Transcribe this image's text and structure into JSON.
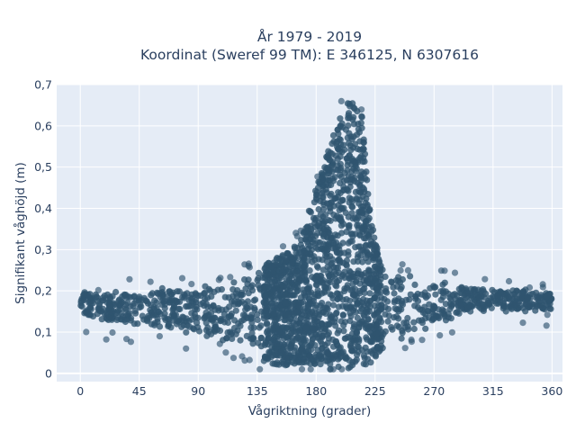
{
  "chart_data": {
    "type": "scatter",
    "title": [
      "År 1979 - 2019",
      "Koordinat (Sweref 99 TM): E 346125, N 6307616"
    ],
    "xlabel": "Vågriktning (grader)",
    "ylabel": "Signifikant våghöjd (m)",
    "xlim": [
      -18,
      368
    ],
    "ylim": [
      -0.02,
      0.7
    ],
    "xticks": [
      0,
      45,
      90,
      135,
      180,
      225,
      270,
      315,
      360
    ],
    "xtick_labels": [
      "0",
      "45",
      "90",
      "135",
      "180",
      "225",
      "270",
      "315",
      "360"
    ],
    "yticks": [
      0,
      0.1,
      0.2,
      0.3,
      0.4,
      0.5,
      0.6,
      0.7
    ],
    "ytick_labels": [
      "0",
      "0,1",
      "0,2",
      "0,3",
      "0,4",
      "0,5",
      "0,6",
      "0,7"
    ],
    "grid": true,
    "marker_color": "#2f5570",
    "background_color": "#e5ecf6",
    "envelope": {
      "x": [
        0,
        10,
        20,
        30,
        45,
        60,
        75,
        90,
        100,
        110,
        120,
        130,
        140,
        150,
        160,
        165,
        170,
        175,
        180,
        185,
        190,
        195,
        200,
        205,
        210,
        215,
        220,
        225,
        230,
        240,
        250,
        260,
        270,
        280,
        290,
        300,
        310,
        320,
        330,
        340,
        350,
        360
      ],
      "y_min": [
        0.14,
        0.13,
        0.12,
        0.12,
        0.11,
        0.1,
        0.1,
        0.09,
        0.08,
        0.07,
        0.06,
        0.05,
        0.03,
        0.02,
        0.02,
        0.02,
        0.02,
        0.02,
        0.02,
        0.02,
        0.02,
        0.01,
        0.01,
        0.01,
        0.01,
        0.02,
        0.02,
        0.03,
        0.05,
        0.07,
        0.09,
        0.1,
        0.11,
        0.13,
        0.14,
        0.15,
        0.15,
        0.15,
        0.15,
        0.15,
        0.15,
        0.15
      ],
      "y_max": [
        0.2,
        0.2,
        0.2,
        0.2,
        0.2,
        0.21,
        0.21,
        0.21,
        0.22,
        0.22,
        0.23,
        0.24,
        0.26,
        0.28,
        0.3,
        0.32,
        0.35,
        0.4,
        0.45,
        0.5,
        0.55,
        0.6,
        0.64,
        0.66,
        0.66,
        0.63,
        0.42,
        0.33,
        0.27,
        0.25,
        0.24,
        0.23,
        0.22,
        0.22,
        0.22,
        0.21,
        0.21,
        0.21,
        0.21,
        0.21,
        0.2,
        0.2
      ]
    },
    "point_count": 2400
  }
}
